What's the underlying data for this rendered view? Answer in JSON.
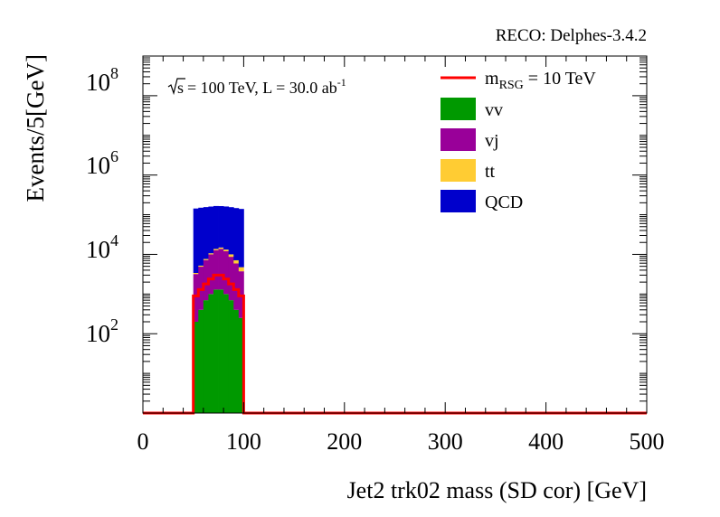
{
  "chart_data": {
    "type": "bar",
    "stacked": true,
    "log_y": true,
    "title": "",
    "header_label": "RECO: Delphes-3.4.2",
    "annotation": {
      "energy": "= 100 TeV, L = 30.0 ab",
      "sqrt_s": "s",
      "lumi_exp": "-1"
    },
    "xlabel": "Jet2 trk02 mass (SD cor) [GeV]",
    "ylabel": "Events/5[GeV]",
    "xlim": [
      0,
      500
    ],
    "ylim": [
      1,
      1000000000
    ],
    "x_ticks": [
      "0",
      "100",
      "200",
      "300",
      "400",
      "500"
    ],
    "y_ticks": [
      {
        "base": "10",
        "exp": "2"
      },
      {
        "base": "10",
        "exp": "4"
      },
      {
        "base": "10",
        "exp": "6"
      },
      {
        "base": "10",
        "exp": "8"
      }
    ],
    "bin_width": 5,
    "x": [
      52.5,
      57.5,
      62.5,
      67.5,
      72.5,
      77.5,
      82.5,
      87.5,
      92.5,
      97.5
    ],
    "series": [
      {
        "name": "vv",
        "color": "#009900",
        "values": [
          200,
          400,
          700,
          1000,
          1300,
          1300,
          1000,
          700,
          400,
          250
        ]
      },
      {
        "name": "vj",
        "color": "#990099",
        "values": [
          3000,
          4500,
          6500,
          9000,
          11500,
          12500,
          11000,
          8000,
          5500,
          3500
        ]
      },
      {
        "name": "tt",
        "color": "#ffcc33",
        "values": [
          200,
          300,
          450,
          650,
          900,
          1100,
          1200,
          1300,
          1200,
          1000
        ]
      },
      {
        "name": "QCD",
        "color": "#0000cc",
        "values": [
          140000,
          145000,
          148000,
          150000,
          152000,
          150000,
          148000,
          145000,
          140000,
          135000
        ]
      }
    ],
    "signal": {
      "name_main": "m",
      "name_sub": "RSG",
      "name_rest": " = 10 TeV",
      "color": "#ff0000",
      "values": [
        900,
        1300,
        1800,
        2400,
        3000,
        3000,
        2400,
        1800,
        1300,
        900
      ]
    },
    "legend_position": "top-right"
  }
}
